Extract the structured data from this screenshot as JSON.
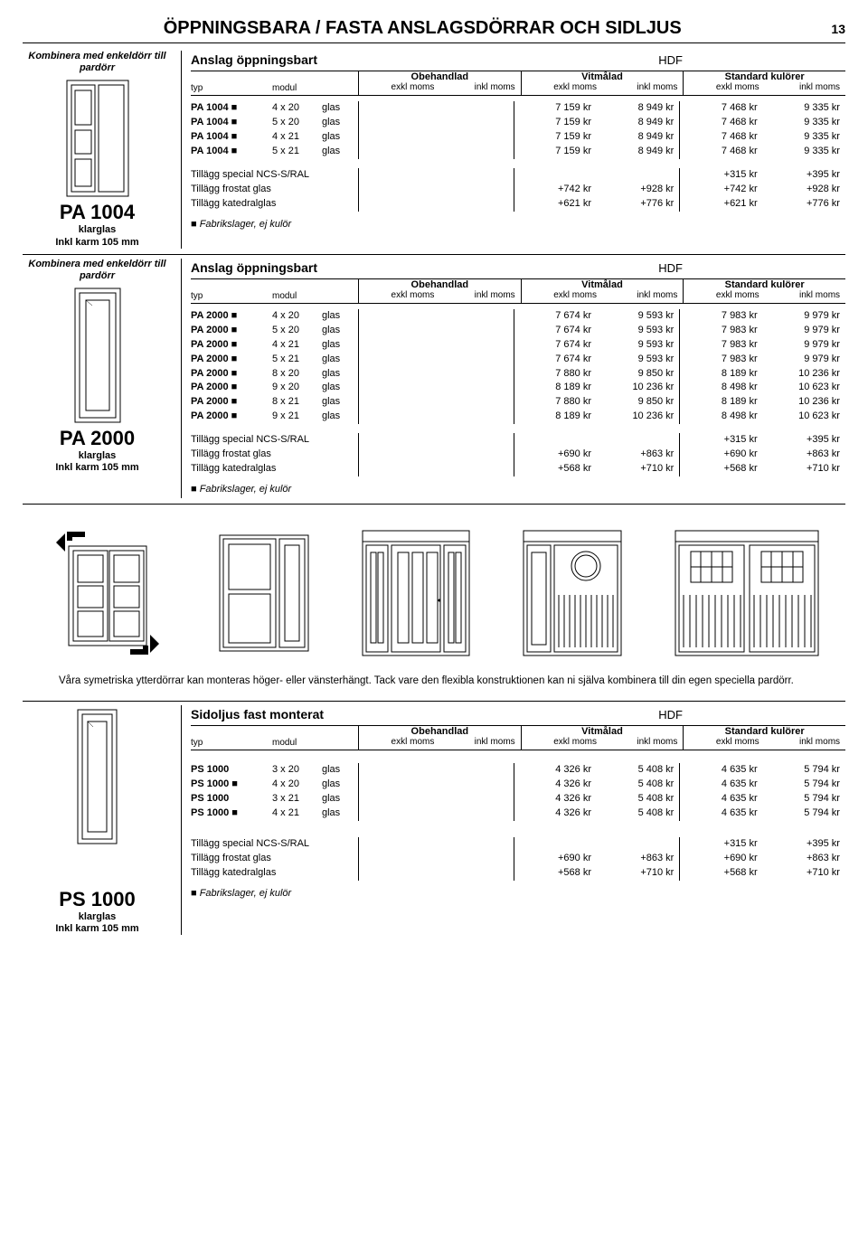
{
  "page_title": "ÖPPNINGSBARA / FASTA ANSLAGSDÖRRAR OCH SIDLJUS",
  "page_number": "13",
  "combine_text": "Kombinera med enkeldörr till pardörr",
  "header_labels": {
    "typ": "typ",
    "modul": "modul",
    "obehandlad": "Obehandlad",
    "vitmalad": "Vitmålad",
    "standard": "Standard kulörer",
    "exkl": "exkl moms",
    "inkl": "inkl moms",
    "hdf": "HDF"
  },
  "surcharge_labels": {
    "ncs": "Tillägg special NCS-S/RAL",
    "frostat": "Tillägg frostat glas",
    "katedral": "Tillägg katedralglas"
  },
  "note_text": "Fabrikslager, ej kulör",
  "gallery_text": "Våra symetriska ytterdörrar kan monteras höger- eller vänsterhängt. Tack vare den flexibla konstruktionen kan ni själva kombinera till din egen speciella pardörr.",
  "block1": {
    "table_title": "Anslag öppningsbart",
    "product_code": "PA 1004",
    "product_sub1": "klarglas",
    "product_sub2": "Inkl karm 105 mm",
    "rows": [
      {
        "typ": "PA 1004 ■",
        "mod": "4 x 20",
        "g": "glas",
        "v1": "7 159 kr",
        "v2": "8 949 kr",
        "v3": "7 468 kr",
        "v4": "9 335 kr"
      },
      {
        "typ": "PA 1004 ■",
        "mod": "5 x 20",
        "g": "glas",
        "v1": "7 159 kr",
        "v2": "8 949 kr",
        "v3": "7 468 kr",
        "v4": "9 335 kr"
      },
      {
        "typ": "PA 1004 ■",
        "mod": "4 x 21",
        "g": "glas",
        "v1": "7 159 kr",
        "v2": "8 949 kr",
        "v3": "7 468 kr",
        "v4": "9 335 kr"
      },
      {
        "typ": "PA 1004 ■",
        "mod": "5 x 21",
        "g": "glas",
        "v1": "7 159 kr",
        "v2": "8 949 kr",
        "v3": "7 468 kr",
        "v4": "9 335 kr"
      }
    ],
    "surcharges": [
      {
        "label": "ncs",
        "v1": "",
        "v2": "",
        "v3": "+315 kr",
        "v4": "+395 kr"
      },
      {
        "label": "frostat",
        "v1": "+742 kr",
        "v2": "+928 kr",
        "v3": "+742 kr",
        "v4": "+928 kr"
      },
      {
        "label": "katedral",
        "v1": "+621 kr",
        "v2": "+776 kr",
        "v3": "+621 kr",
        "v4": "+776 kr"
      }
    ]
  },
  "block2": {
    "table_title": "Anslag öppningsbart",
    "product_code": "PA 2000",
    "product_sub1": "klarglas",
    "product_sub2": "Inkl karm 105 mm",
    "rows": [
      {
        "typ": "PA 2000 ■",
        "mod": "4 x 20",
        "g": "glas",
        "v1": "7 674 kr",
        "v2": "9 593 kr",
        "v3": "7 983 kr",
        "v4": "9 979 kr"
      },
      {
        "typ": "PA 2000 ■",
        "mod": "5 x 20",
        "g": "glas",
        "v1": "7 674 kr",
        "v2": "9 593 kr",
        "v3": "7 983 kr",
        "v4": "9 979 kr"
      },
      {
        "typ": "PA 2000 ■",
        "mod": "4 x 21",
        "g": "glas",
        "v1": "7 674 kr",
        "v2": "9 593 kr",
        "v3": "7 983 kr",
        "v4": "9 979 kr"
      },
      {
        "typ": "PA 2000 ■",
        "mod": "5 x 21",
        "g": "glas",
        "v1": "7 674 kr",
        "v2": "9 593 kr",
        "v3": "7 983 kr",
        "v4": "9 979 kr"
      },
      {
        "typ": "PA 2000 ■",
        "mod": "8 x 20",
        "g": "glas",
        "v1": "7 880 kr",
        "v2": "9 850 kr",
        "v3": "8 189 kr",
        "v4": "10 236 kr"
      },
      {
        "typ": "PA 2000 ■",
        "mod": "9 x 20",
        "g": "glas",
        "v1": "8 189 kr",
        "v2": "10 236 kr",
        "v3": "8 498 kr",
        "v4": "10 623 kr"
      },
      {
        "typ": "PA 2000 ■",
        "mod": "8 x 21",
        "g": "glas",
        "v1": "7 880 kr",
        "v2": "9 850 kr",
        "v3": "8 189 kr",
        "v4": "10 236 kr"
      },
      {
        "typ": "PA 2000 ■",
        "mod": "9 x 21",
        "g": "glas",
        "v1": "8 189 kr",
        "v2": "10 236 kr",
        "v3": "8 498 kr",
        "v4": "10 623 kr"
      }
    ],
    "surcharges": [
      {
        "label": "ncs",
        "v1": "",
        "v2": "",
        "v3": "+315 kr",
        "v4": "+395 kr"
      },
      {
        "label": "frostat",
        "v1": "+690 kr",
        "v2": "+863 kr",
        "v3": "+690 kr",
        "v4": "+863 kr"
      },
      {
        "label": "katedral",
        "v1": "+568 kr",
        "v2": "+710 kr",
        "v3": "+568 kr",
        "v4": "+710 kr"
      }
    ]
  },
  "block3": {
    "table_title": "Sidoljus fast monterat",
    "product_code": "PS 1000",
    "product_sub1": "klarglas",
    "product_sub2": "Inkl karm 105 mm",
    "rows": [
      {
        "typ": "PS 1000",
        "mod": "3 x 20",
        "g": "glas",
        "v1": "4 326 kr",
        "v2": "5 408 kr",
        "v3": "4 635 kr",
        "v4": "5 794 kr"
      },
      {
        "typ": "PS 1000 ■",
        "mod": "4 x 20",
        "g": "glas",
        "v1": "4 326 kr",
        "v2": "5 408 kr",
        "v3": "4 635 kr",
        "v4": "5 794 kr"
      },
      {
        "typ": "PS 1000",
        "mod": "3 x 21",
        "g": "glas",
        "v1": "4 326 kr",
        "v2": "5 408 kr",
        "v3": "4 635 kr",
        "v4": "5 794 kr"
      },
      {
        "typ": "PS 1000 ■",
        "mod": "4 x 21",
        "g": "glas",
        "v1": "4 326 kr",
        "v2": "5 408 kr",
        "v3": "4 635 kr",
        "v4": "5 794 kr"
      }
    ],
    "surcharges": [
      {
        "label": "ncs",
        "v1": "",
        "v2": "",
        "v3": "+315 kr",
        "v4": "+395 kr"
      },
      {
        "label": "frostat",
        "v1": "+690 kr",
        "v2": "+863 kr",
        "v3": "+690 kr",
        "v4": "+863 kr"
      },
      {
        "label": "katedral",
        "v1": "+568 kr",
        "v2": "+710 kr",
        "v3": "+568 kr",
        "v4": "+710 kr"
      }
    ]
  }
}
